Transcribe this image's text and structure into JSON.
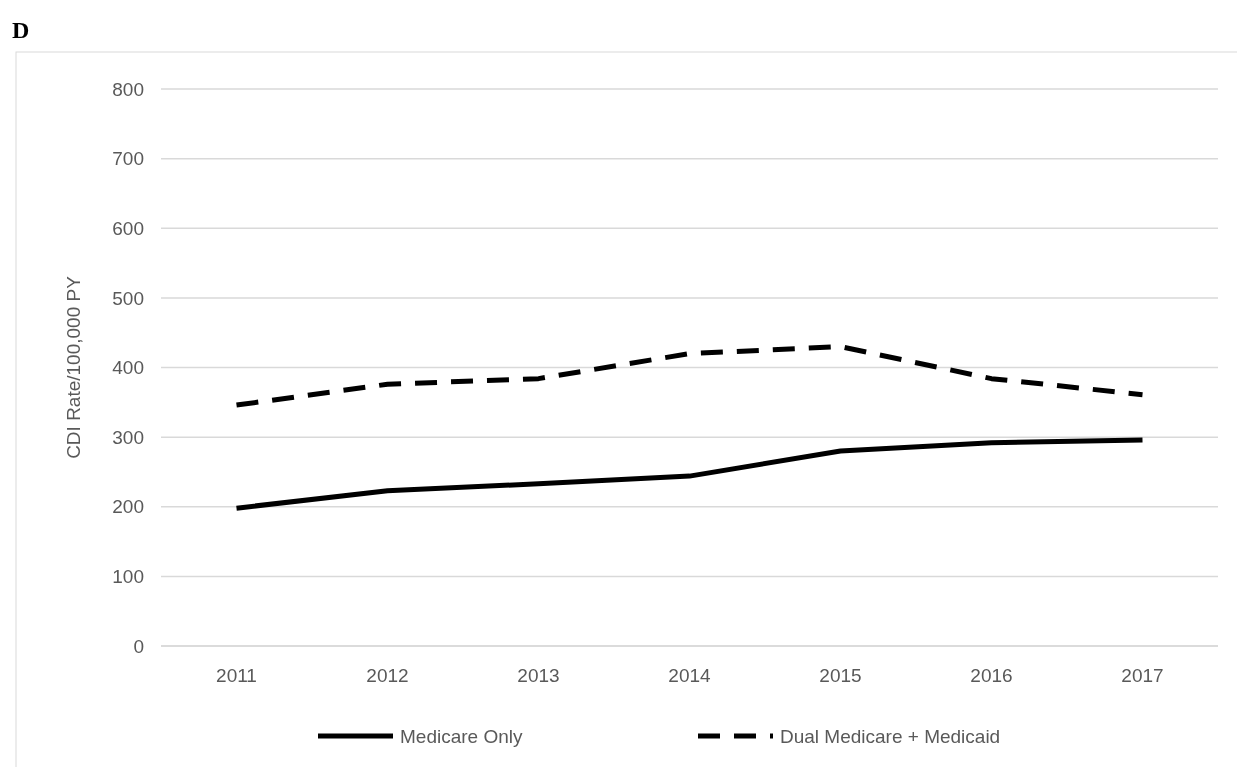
{
  "chart_data": {
    "type": "line",
    "title": "D",
    "ylabel": "CDI Rate/100,000 PY",
    "categories": [
      "2011",
      "2012",
      "2013",
      "2014",
      "2015",
      "2016",
      "2017"
    ],
    "series": [
      {
        "name": "Medicare Only",
        "color": "#000000",
        "line_style": "solid",
        "values": [
          198,
          223,
          233,
          244,
          280,
          292,
          296
        ]
      },
      {
        "name": "Dual Medicare + Medicaid",
        "color": "#000000",
        "line_style": "dashed",
        "values": [
          346,
          376,
          384,
          420,
          430,
          384,
          361
        ]
      }
    ],
    "ylim": [
      0,
      800
    ],
    "yticks": [
      0,
      100,
      200,
      300,
      400,
      500,
      600,
      700,
      800
    ],
    "grid": "y",
    "legend": "bottom",
    "marker": "none"
  }
}
